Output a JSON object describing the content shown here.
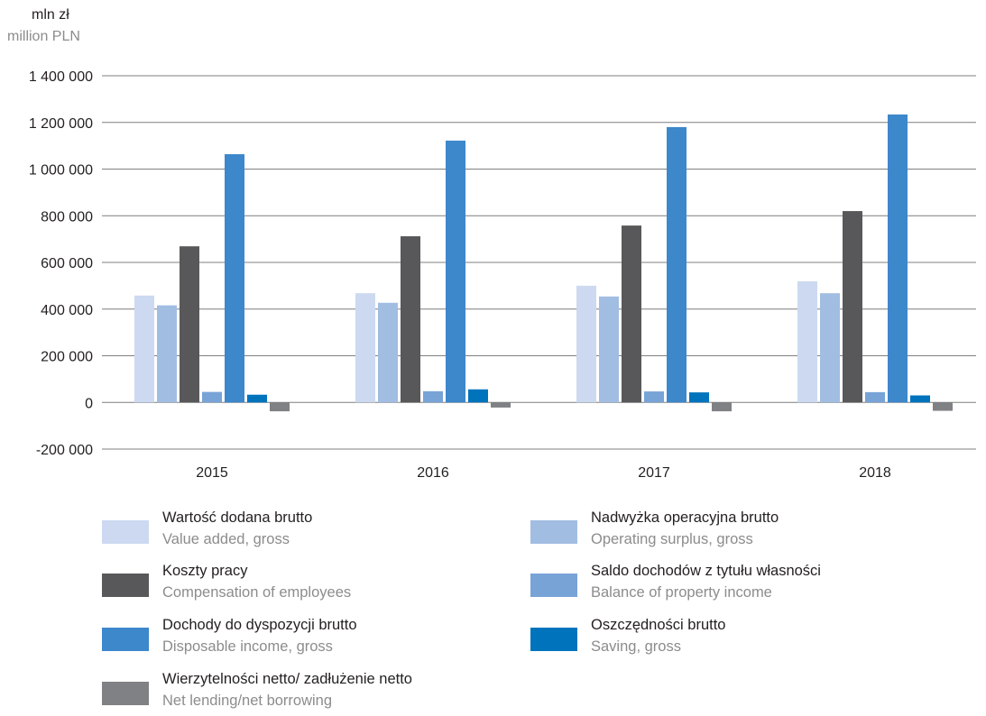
{
  "ytitle": {
    "pl": "mln zł",
    "en": "million PLN"
  },
  "chart_data": {
    "type": "bar",
    "categories": [
      "2015",
      "2016",
      "2017",
      "2018"
    ],
    "ylim": [
      -200000,
      1400000
    ],
    "yticks": [
      -200000,
      0,
      200000,
      400000,
      600000,
      800000,
      1000000,
      1200000,
      1400000
    ],
    "ytick_labels": [
      "-200 000",
      "0",
      "200 000",
      "400 000",
      "600 000",
      "800 000",
      "1 000 000",
      "1 200 000",
      "1 400 000"
    ],
    "grid": true,
    "legend_position": "bottom",
    "series": [
      {
        "name": "Wartość dodana brutto",
        "name_en": "Value added, gross",
        "color": "#ccd9f0",
        "values": [
          458000,
          468000,
          500000,
          519000
        ]
      },
      {
        "name": "Nadwyżka operacyjna brutto",
        "name_en": "Operating surplus, gross",
        "color": "#a2bde2",
        "values": [
          416000,
          427000,
          454000,
          468000
        ]
      },
      {
        "name": "Koszty pracy",
        "name_en": "Compensation of employees",
        "color": "#58585a",
        "values": [
          669000,
          712000,
          758000,
          820000
        ]
      },
      {
        "name": "Saldo dochodów z tytułu własności",
        "name_en": "Balance of property income",
        "color": "#78a3d6",
        "values": [
          45000,
          48000,
          47000,
          44000
        ]
      },
      {
        "name": "Dochody do dyspozycji brutto",
        "name_en": "Disposable income, gross",
        "color": "#3d87cb",
        "values": [
          1064000,
          1122000,
          1180000,
          1234000
        ]
      },
      {
        "name": "Oszczędności brutto",
        "name_en": "Saving, gross",
        "color": "#0073bd",
        "values": [
          33000,
          56000,
          43000,
          30000
        ]
      },
      {
        "name": "Wierzytelności netto/ zadłużenie netto",
        "name_en": "Net lending/net borrowing",
        "color": "#808184",
        "values": [
          -38000,
          -22000,
          -38000,
          -36000
        ]
      }
    ]
  }
}
